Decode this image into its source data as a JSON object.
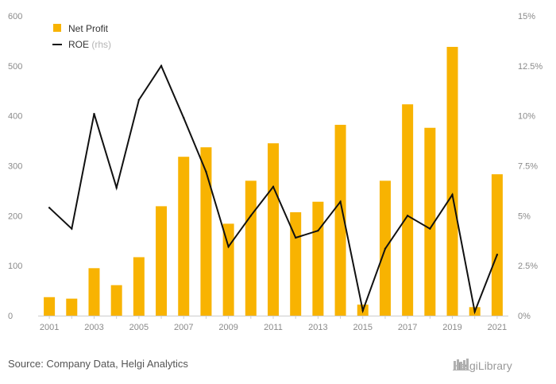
{
  "colors": {
    "bar": "#F8B301",
    "line": "#111111",
    "grid": "#e6e6e6",
    "axis": "#cccccc"
  },
  "chart_data": {
    "type": "bar",
    "categories": [
      "2001",
      "2002",
      "2003",
      "2004",
      "2005",
      "2006",
      "2007",
      "2008",
      "2009",
      "2010",
      "2011",
      "2012",
      "2013",
      "2014",
      "2015",
      "2016",
      "2017",
      "2018",
      "2019",
      "2020",
      "2021"
    ],
    "x_tick_labels": [
      "2001",
      "2003",
      "2005",
      "2007",
      "2009",
      "2011",
      "2013",
      "2015",
      "2017",
      "2019",
      "2021"
    ],
    "series": [
      {
        "name": "Net Profit",
        "type": "bar",
        "axis": "left",
        "values": [
          37,
          34,
          95,
          61,
          117,
          219,
          318,
          337,
          184,
          270,
          345,
          207,
          228,
          382,
          22,
          270,
          423,
          376,
          538,
          17,
          283
        ]
      },
      {
        "name": "ROE",
        "name_suffix": "(rhs)",
        "type": "line",
        "axis": "right",
        "values": [
          5.4,
          4.35,
          10.1,
          6.4,
          10.8,
          12.5,
          9.9,
          7.2,
          3.45,
          5.0,
          6.45,
          3.9,
          4.25,
          5.7,
          0.25,
          3.35,
          5.0,
          4.35,
          6.05,
          0.2,
          3.05
        ]
      }
    ],
    "y_left": {
      "min": 0,
      "max": 600,
      "ticks": [
        0,
        100,
        200,
        300,
        400,
        500,
        600
      ],
      "tick_labels": [
        "0",
        "100",
        "200",
        "300",
        "400",
        "500",
        "600"
      ]
    },
    "y_right": {
      "min": 0,
      "max": 15,
      "ticks": [
        0,
        2.5,
        5,
        7.5,
        10,
        12.5,
        15
      ],
      "tick_labels": [
        "0%",
        "2.5%",
        "5%",
        "7.5%",
        "10%",
        "12.5%",
        "15%"
      ]
    },
    "grid": false,
    "legend_position": "top-left",
    "title": "",
    "xlabel": "",
    "ylabel": ""
  },
  "footer": {
    "source": "Source: Company Data, Helgi Analytics"
  },
  "brand": {
    "name": "HelgiLibrary"
  }
}
